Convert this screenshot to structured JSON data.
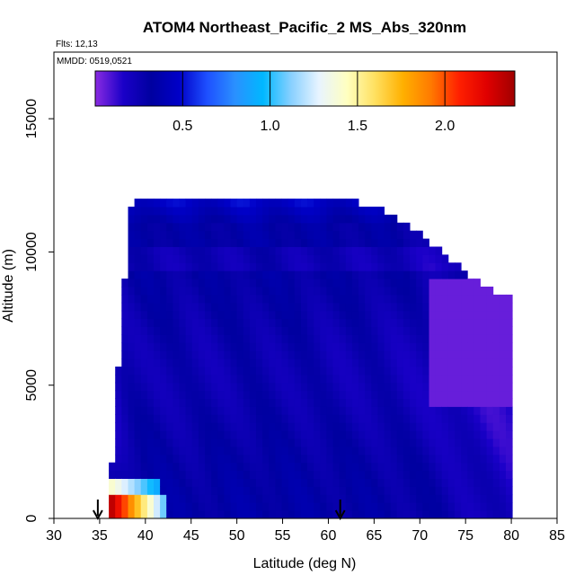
{
  "chart_data": {
    "type": "heatmap",
    "title": "ATOM4 Northeast_Pacific_2 MS_Abs_320nm",
    "flights_label": "Flts: 12,13",
    "date_label": "MMDD: 0519,0521",
    "xlabel": "Latitude (deg N)",
    "ylabel": "Altitude (m)",
    "xlim": [
      30,
      85
    ],
    "ylim": [
      0,
      17500
    ],
    "xticks": [
      "30",
      "35",
      "40",
      "45",
      "50",
      "55",
      "60",
      "65",
      "70",
      "75",
      "80",
      "85"
    ],
    "xtick_values": [
      30,
      35,
      40,
      45,
      50,
      55,
      60,
      65,
      70,
      75,
      80,
      85
    ],
    "yticks": [
      "0",
      "5000",
      "10000",
      "15000"
    ],
    "ytick_values": [
      0,
      5000,
      10000,
      15000
    ],
    "colorbar": {
      "ticks": [
        "0.5",
        "1.0",
        "1.5",
        "2.0"
      ],
      "tick_values": [
        0.5,
        1.0,
        1.5,
        2.0
      ],
      "range": [
        0.0,
        2.4
      ],
      "colors": [
        "#8a2be2",
        "#1a00c8",
        "#0000a0",
        "#0000c8",
        "#1e50ff",
        "#2a90ff",
        "#00b8ff",
        "#88d0ff",
        "#e8f4ff",
        "#ffffc0",
        "#ffe060",
        "#ffb000",
        "#ff7a00",
        "#ff2000",
        "#e00000",
        "#a00000"
      ]
    },
    "arrows_latitude": [
      34.8,
      61.3
    ],
    "grid": false,
    "legend": "colorbar top",
    "profiles": [
      {
        "lat": 36.0,
        "zmin": 0,
        "zmax": 2000,
        "base": 0.2
      },
      {
        "lat": 37.0,
        "zmin": 0,
        "zmax": 7000,
        "base": 0.25
      },
      {
        "lat": 38.0,
        "zmin": 0,
        "zmax": 11500,
        "base": 0.28
      },
      {
        "lat": 40.0,
        "zmin": 0,
        "zmax": 12000,
        "base": 0.3
      },
      {
        "lat": 45.0,
        "zmin": 0,
        "zmax": 12000,
        "base": 0.28
      },
      {
        "lat": 50.0,
        "zmin": 0,
        "zmax": 12000,
        "base": 0.3
      },
      {
        "lat": 55.0,
        "zmin": 0,
        "zmax": 12000,
        "base": 0.3
      },
      {
        "lat": 60.0,
        "zmin": 0,
        "zmax": 12000,
        "base": 0.28
      },
      {
        "lat": 65.0,
        "zmin": 0,
        "zmax": 11500,
        "base": 0.28
      },
      {
        "lat": 70.0,
        "zmin": 0,
        "zmax": 10500,
        "base": 0.25
      },
      {
        "lat": 75.0,
        "zmin": 0,
        "zmax": 9000,
        "base": 0.2
      },
      {
        "lat": 80.0,
        "zmin": 0,
        "zmax": 8000,
        "base": 0.15
      }
    ]
  }
}
